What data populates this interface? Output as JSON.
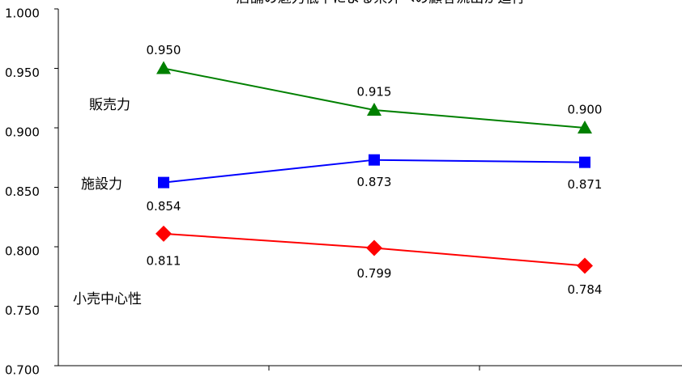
{
  "chart_data": {
    "type": "line",
    "title": "店舗の魅力低下による県外への顧客流出が進行",
    "categories": [
      null,
      null,
      null
    ],
    "series": [
      {
        "name": "販売力",
        "color": "#008000",
        "marker": "triangle",
        "values": [
          0.95,
          0.915,
          0.9
        ],
        "value_labels": [
          "0.950",
          "0.915",
          "0.900"
        ]
      },
      {
        "name": "施設力",
        "color": "#0000ff",
        "marker": "square",
        "values": [
          0.854,
          0.873,
          0.871
        ],
        "value_labels": [
          "0.854",
          "0.873",
          "0.871"
        ]
      },
      {
        "name": "小売中心性",
        "color": "#ff0000",
        "marker": "diamond",
        "values": [
          0.811,
          0.799,
          0.784
        ],
        "value_labels": [
          "0.811",
          "0.799",
          "0.784"
        ]
      }
    ],
    "ylim": [
      0.7,
      1.0
    ],
    "yticks": [
      {
        "value": 0.7,
        "label": "0.700"
      },
      {
        "value": 0.75,
        "label": "0.750"
      },
      {
        "value": 0.8,
        "label": "0.800"
      },
      {
        "value": 0.85,
        "label": "0.850"
      },
      {
        "value": 0.9,
        "label": "0.900"
      },
      {
        "value": 0.95,
        "label": "0.950"
      },
      {
        "value": 1.0,
        "label": "1.000"
      }
    ],
    "grid": false
  }
}
